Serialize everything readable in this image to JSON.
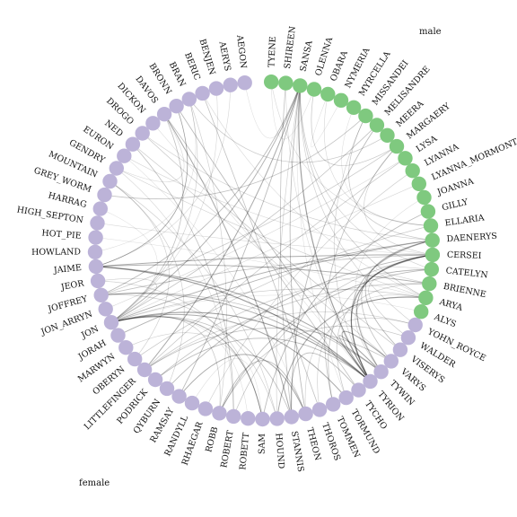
{
  "legend": {
    "male": "male",
    "female": "female"
  },
  "colors": {
    "male": "#bcb3d8",
    "female": "#7fc97f",
    "edge": "#000000"
  },
  "groups": {
    "male": [
      "AEGON",
      "AERYS",
      "BENJEN",
      "BERIC",
      "BRAN",
      "BRONN",
      "DAVOS",
      "DICKON",
      "DROGO",
      "NED",
      "EURON",
      "GENDRY",
      "MOUNTAIN",
      "GREY_WORM",
      "HARRAG",
      "HIGH_SEPTON",
      "HOT_PIE",
      "HOWLAND",
      "JAIME",
      "JEOR",
      "JOFFREY",
      "JON_ARRYN",
      "JON",
      "JORAH",
      "MARWYN",
      "OBERYN",
      "LITTLEFINGER",
      "PODRICK",
      "QYBURN",
      "RAMSAY",
      "RANDYLL",
      "RHAEGAR",
      "ROBB",
      "ROBERT",
      "ROBETT",
      "SAM",
      "HOUND",
      "STANNIS",
      "THEON",
      "THOROS",
      "TOMMEN",
      "TORMUND",
      "TYCHO",
      "TYRION",
      "TYWIN",
      "VARYS",
      "VISERYS",
      "WALDER",
      "YOHN_ROYCE"
    ],
    "female": [
      "ALYS",
      "ARYA",
      "BRIENNE",
      "CATELYN",
      "CERSEI",
      "DAENERYS",
      "ELLARIA",
      "GILLY",
      "JOANNA",
      "LYANNA_MORMONT",
      "LYANNA",
      "LYSA",
      "MARGAERY",
      "MEERA",
      "MELISANDRE",
      "MISSANDEI",
      "MYRCELLA",
      "NYMERIA",
      "OBARA",
      "OLENNA",
      "SANSA",
      "SHIREEN",
      "TYENE"
    ]
  },
  "edges": [
    [
      "TYRION",
      "SANSA",
      0.55
    ],
    [
      "TYRION",
      "CERSEI",
      0.6
    ],
    [
      "TYRION",
      "JAIME",
      0.55
    ],
    [
      "TYRION",
      "JON",
      0.5
    ],
    [
      "TYRION",
      "VARYS",
      0.5
    ],
    [
      "TYRION",
      "TYWIN",
      0.5
    ],
    [
      "TYRION",
      "BRONN",
      0.35
    ],
    [
      "TYRION",
      "DAENERYS",
      0.35
    ],
    [
      "TYRION",
      "JOFFREY",
      0.4
    ],
    [
      "TYRION",
      "PODRICK",
      0.35
    ],
    [
      "TYRION",
      "SHIREEN",
      0.15
    ],
    [
      "TYRION",
      "MISSANDEI",
      0.2
    ],
    [
      "TYWIN",
      "JAIME",
      0.45
    ],
    [
      "TYWIN",
      "CERSEI",
      0.45
    ],
    [
      "TYWIN",
      "JOFFREY",
      0.3
    ],
    [
      "TYWIN",
      "ARYA",
      0.2
    ],
    [
      "TYCHO",
      "STANNIS",
      0.35
    ],
    [
      "TYCHO",
      "DAVOS",
      0.3
    ],
    [
      "TORMUND",
      "JON",
      0.45
    ],
    [
      "TORMUND",
      "BRIENNE",
      0.25
    ],
    [
      "THEON",
      "ROBB",
      0.35
    ],
    [
      "THEON",
      "RAMSAY",
      0.45
    ],
    [
      "THEON",
      "SANSA",
      0.35
    ],
    [
      "THEON",
      "YOHN_ROYCE",
      0.2
    ],
    [
      "THOROS",
      "BERIC",
      0.3
    ],
    [
      "THOROS",
      "ARYA",
      0.2
    ],
    [
      "TOMMEN",
      "CERSEI",
      0.3
    ],
    [
      "TOMMEN",
      "MARGAERY",
      0.3
    ],
    [
      "VARYS",
      "DAENERYS",
      0.3
    ],
    [
      "VARYS",
      "LITTLEFINGER",
      0.3
    ],
    [
      "VARYS",
      "NED",
      0.2
    ],
    [
      "VISERYS",
      "DAENERYS",
      0.35
    ],
    [
      "VISERYS",
      "DROGO",
      0.25
    ],
    [
      "WALDER",
      "ROBB",
      0.25
    ],
    [
      "WALDER",
      "CATELYN",
      0.2
    ],
    [
      "YOHN_ROYCE",
      "LITTLEFINGER",
      0.2
    ],
    [
      "YOHN_ROYCE",
      "SANSA",
      0.2
    ],
    [
      "STANNIS",
      "DAVOS",
      0.45
    ],
    [
      "STANNIS",
      "MELISANDRE",
      0.35
    ],
    [
      "STANNIS",
      "SHIREEN",
      0.3
    ],
    [
      "STANNIS",
      "JON",
      0.3
    ],
    [
      "HOUND",
      "ARYA",
      0.45
    ],
    [
      "HOUND",
      "SANSA",
      0.2
    ],
    [
      "HOUND",
      "MOUNTAIN",
      0.2
    ],
    [
      "HOUND",
      "JOFFREY",
      0.2
    ],
    [
      "SAM",
      "JON",
      0.4
    ],
    [
      "SAM",
      "GILLY",
      0.35
    ],
    [
      "SAM",
      "MARWYN",
      0.2
    ],
    [
      "SAM",
      "JEOR",
      0.2
    ],
    [
      "ROBERT",
      "NED",
      0.3
    ],
    [
      "ROBERT",
      "CERSEI",
      0.25
    ],
    [
      "ROBERT",
      "GENDRY",
      0.15
    ],
    [
      "ROBB",
      "CATELYN",
      0.35
    ],
    [
      "ROBB",
      "JON",
      0.25
    ],
    [
      "ROBB",
      "BRAN",
      0.2
    ],
    [
      "RHAEGAR",
      "LYANNA",
      0.2
    ],
    [
      "RAMSAY",
      "SANSA",
      0.35
    ],
    [
      "QYBURN",
      "CERSEI",
      0.35
    ],
    [
      "QYBURN",
      "MOUNTAIN",
      0.2
    ],
    [
      "LITTLEFINGER",
      "SANSA",
      0.45
    ],
    [
      "LITTLEFINGER",
      "CATELYN",
      0.25
    ],
    [
      "LITTLEFINGER",
      "LYSA",
      0.25
    ],
    [
      "PODRICK",
      "BRIENNE",
      0.3
    ],
    [
      "OBERYN",
      "ELLARIA",
      0.25
    ],
    [
      "OBERYN",
      "MOUNTAIN",
      0.2
    ],
    [
      "JON",
      "SANSA",
      0.4
    ],
    [
      "JON",
      "ARYA",
      0.25
    ],
    [
      "JON",
      "DAENERYS",
      0.4
    ],
    [
      "JON",
      "DAVOS",
      0.3
    ],
    [
      "JON",
      "MELISANDRE",
      0.3
    ],
    [
      "JON",
      "JEOR",
      0.2
    ],
    [
      "JON",
      "LYANNA_MORMONT",
      0.15
    ],
    [
      "JON",
      "BRAN",
      0.2
    ],
    [
      "JORAH",
      "DAENERYS",
      0.4
    ],
    [
      "JAIME",
      "CERSEI",
      0.45
    ],
    [
      "JAIME",
      "BRIENNE",
      0.4
    ],
    [
      "JAIME",
      "BRONN",
      0.3
    ],
    [
      "JOFFREY",
      "SANSA",
      0.35
    ],
    [
      "JOFFREY",
      "CERSEI",
      0.3
    ],
    [
      "JOFFREY",
      "MARGAERY",
      0.25
    ],
    [
      "GREY_WORM",
      "MISSANDEI",
      0.3
    ],
    [
      "DAENERYS",
      "MISSANDEI",
      0.25
    ],
    [
      "DAENERYS",
      "DROGO",
      0.2
    ],
    [
      "BRAN",
      "MEERA",
      0.25
    ],
    [
      "BRAN",
      "HOWLAND",
      0.1
    ],
    [
      "ARYA",
      "SANSA",
      0.25
    ],
    [
      "ARYA",
      "GENDRY",
      0.2
    ],
    [
      "ARYA",
      "HOT_PIE",
      0.1
    ],
    [
      "CERSEI",
      "MARGAERY",
      0.2
    ],
    [
      "CERSEI",
      "HIGH_SEPTON",
      0.15
    ],
    [
      "MARGAERY",
      "OLENNA",
      0.25
    ],
    [
      "OLENNA",
      "TYENE",
      0.1
    ],
    [
      "ELLARIA",
      "OBARA",
      0.15
    ],
    [
      "ELLARIA",
      "TYENE",
      0.15
    ],
    [
      "NYMERIA",
      "OBARA",
      0.1
    ],
    [
      "MYRCELLA",
      "ELLARIA",
      0.1
    ],
    [
      "AEGON",
      "SANSA",
      0.1
    ],
    [
      "AERYS",
      "JAIME",
      0.15
    ],
    [
      "BENJEN",
      "JON",
      0.15
    ],
    [
      "EURON",
      "CERSEI",
      0.15
    ],
    [
      "EURON",
      "THEON",
      0.1
    ],
    [
      "HARRAG",
      "JON",
      0.1
    ],
    [
      "JON_ARRYN",
      "LYSA",
      0.15
    ],
    [
      "RANDYLL",
      "SAM",
      0.1
    ],
    [
      "DICKON",
      "TYRION",
      0.1
    ],
    [
      "ROBETT",
      "JON",
      0.1
    ],
    [
      "CATELYN",
      "BRIENNE",
      0.2
    ],
    [
      "CATELYN",
      "SANSA",
      0.2
    ],
    [
      "ALYS",
      "JON",
      0.1
    ],
    [
      "JOANNA",
      "TYWIN",
      0.1
    ],
    [
      "DAVOS",
      "GENDRY",
      0.15
    ],
    [
      "BERIC",
      "ARYA",
      0.15
    ],
    [
      "TORMUND",
      "SANSA",
      0.1
    ],
    [
      "BRONN",
      "JAIME",
      0.2
    ]
  ]
}
